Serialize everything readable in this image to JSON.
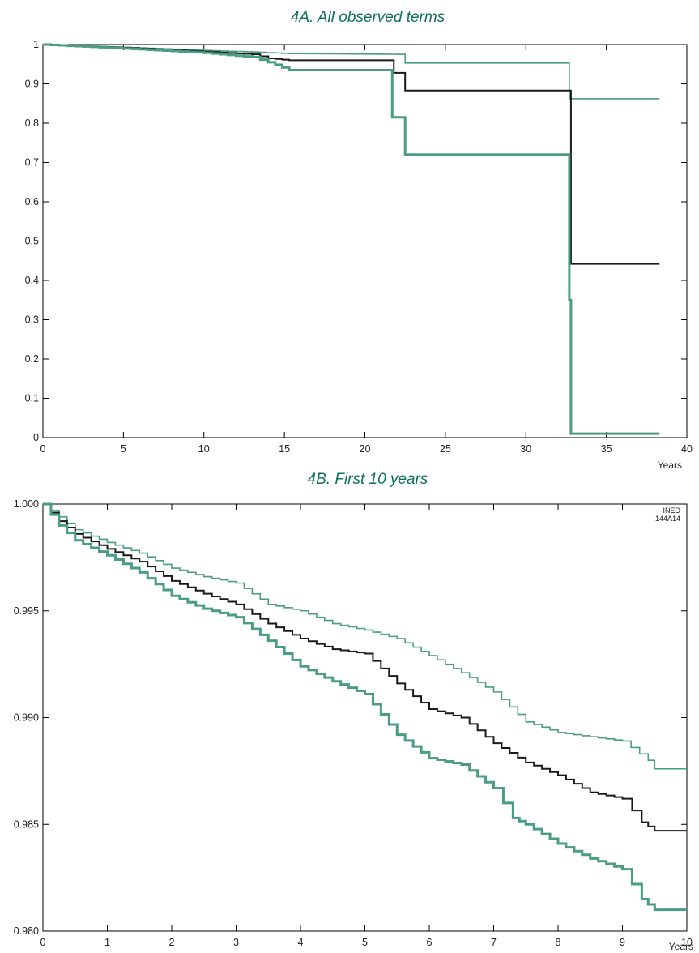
{
  "chart_data": [
    {
      "type": "line",
      "title": "4A. All observed terms",
      "xlabel": "",
      "ylabel": "",
      "x_unit": "Years",
      "xlim": [
        0,
        40
      ],
      "ylim": [
        0,
        1
      ],
      "x_ticks": [
        "0",
        "5",
        "10",
        "15",
        "20",
        "25",
        "30",
        "35",
        "40"
      ],
      "y_ticks": [
        "0",
        "0.1",
        "0.2",
        "0.3",
        "0.4",
        "0.5",
        "0.6",
        "0.7",
        "0.8",
        "0.9",
        "1"
      ],
      "grid": false,
      "series": [
        {
          "color": "#4a9c84",
          "width": "thin",
          "points": [
            [
              0,
              1.0
            ],
            [
              5,
              0.993
            ],
            [
              10,
              0.985
            ],
            [
              13,
              0.981
            ],
            [
              15.3,
              0.977
            ],
            [
              22.5,
              0.975
            ],
            [
              22.5,
              0.953
            ],
            [
              32.7,
              0.953
            ],
            [
              32.7,
              0.862
            ],
            [
              38.3,
              0.862
            ]
          ]
        },
        {
          "color": "#1a1a1a",
          "width": "medium",
          "points": [
            [
              0,
              1.0
            ],
            [
              5,
              0.992
            ],
            [
              10,
              0.982
            ],
            [
              13,
              0.975
            ],
            [
              14,
              0.965
            ],
            [
              15.3,
              0.96
            ],
            [
              21.8,
              0.96
            ],
            [
              21.8,
              0.928
            ],
            [
              22.5,
              0.928
            ],
            [
              22.5,
              0.883
            ],
            [
              32.6,
              0.883
            ],
            [
              32.8,
              0.442
            ],
            [
              38.3,
              0.442
            ]
          ]
        },
        {
          "color": "#4a9c84",
          "width": "thick",
          "points": [
            [
              0,
              1.0
            ],
            [
              5,
              0.99
            ],
            [
              10,
              0.979
            ],
            [
              13,
              0.968
            ],
            [
              14,
              0.955
            ],
            [
              15.3,
              0.935
            ],
            [
              21.7,
              0.935
            ],
            [
              21.7,
              0.815
            ],
            [
              22.5,
              0.815
            ],
            [
              22.5,
              0.72
            ],
            [
              32.6,
              0.72
            ],
            [
              32.7,
              0.35
            ],
            [
              32.8,
              0.01
            ],
            [
              38.3,
              0.01
            ]
          ]
        }
      ]
    },
    {
      "type": "line",
      "title": "4B. First 10 years",
      "xlabel": "",
      "ylabel": "",
      "x_unit": "Years",
      "xlim": [
        0,
        10
      ],
      "ylim": [
        0.98,
        1.0
      ],
      "x_ticks": [
        "0",
        "1",
        "2",
        "3",
        "4",
        "5",
        "6",
        "7",
        "8",
        "9",
        "10"
      ],
      "y_ticks": [
        "0.980",
        "0.985",
        "0.990",
        "0.995",
        "1.000"
      ],
      "grid": false,
      "series": [
        {
          "color": "#4a9c84",
          "width": "thin",
          "points": [
            [
              0,
              1.0
            ],
            [
              0.25,
              0.9994
            ],
            [
              0.5,
              0.9988
            ],
            [
              1,
              0.9982
            ],
            [
              1.5,
              0.9977
            ],
            [
              2,
              0.997
            ],
            [
              2.5,
              0.9966
            ],
            [
              3,
              0.9963
            ],
            [
              3.5,
              0.9953
            ],
            [
              4,
              0.995
            ],
            [
              4.5,
              0.9944
            ],
            [
              5,
              0.9941
            ],
            [
              5.5,
              0.9937
            ],
            [
              6,
              0.9929
            ],
            [
              6.5,
              0.9921
            ],
            [
              7,
              0.9912
            ],
            [
              7.5,
              0.9898
            ],
            [
              8,
              0.9893
            ],
            [
              8.5,
              0.9891
            ],
            [
              9,
              0.9889
            ],
            [
              9.4,
              0.988
            ],
            [
              9.5,
              0.9876
            ],
            [
              10,
              0.9876
            ]
          ]
        },
        {
          "color": "#1a1a1a",
          "width": "medium",
          "points": [
            [
              0,
              1.0
            ],
            [
              0.25,
              0.9992
            ],
            [
              0.5,
              0.9986
            ],
            [
              1,
              0.9979
            ],
            [
              1.5,
              0.9973
            ],
            [
              2,
              0.9964
            ],
            [
              2.5,
              0.9958
            ],
            [
              3,
              0.9953
            ],
            [
              3.5,
              0.9944
            ],
            [
              4,
              0.9937
            ],
            [
              4.5,
              0.9932
            ],
            [
              5,
              0.993
            ],
            [
              5.5,
              0.9916
            ],
            [
              6,
              0.9904
            ],
            [
              6.5,
              0.99
            ],
            [
              7,
              0.9888
            ],
            [
              7.5,
              0.9879
            ],
            [
              8,
              0.9873
            ],
            [
              8.5,
              0.9865
            ],
            [
              9,
              0.9862
            ],
            [
              9.3,
              0.9851
            ],
            [
              9.5,
              0.9847
            ],
            [
              10,
              0.9847
            ]
          ]
        },
        {
          "color": "#4a9c84",
          "width": "thick",
          "points": [
            [
              0,
              1.0
            ],
            [
              0.25,
              0.999
            ],
            [
              0.5,
              0.9983
            ],
            [
              1,
              0.9976
            ],
            [
              1.5,
              0.9968
            ],
            [
              2,
              0.9957
            ],
            [
              2.5,
              0.9951
            ],
            [
              3,
              0.9947
            ],
            [
              3.5,
              0.9936
            ],
            [
              4,
              0.9924
            ],
            [
              4.5,
              0.9917
            ],
            [
              5,
              0.9911
            ],
            [
              5.5,
              0.9892
            ],
            [
              6,
              0.9881
            ],
            [
              6.5,
              0.9878
            ],
            [
              7,
              0.9867
            ],
            [
              7.3,
              0.9853
            ],
            [
              7.5,
              0.985
            ],
            [
              8,
              0.9841
            ],
            [
              8.5,
              0.9834
            ],
            [
              9,
              0.9829
            ],
            [
              9.3,
              0.9815
            ],
            [
              9.5,
              0.981
            ],
            [
              10,
              0.981
            ]
          ]
        }
      ]
    }
  ],
  "credit": {
    "line1": "INED",
    "line2": "144A14"
  }
}
